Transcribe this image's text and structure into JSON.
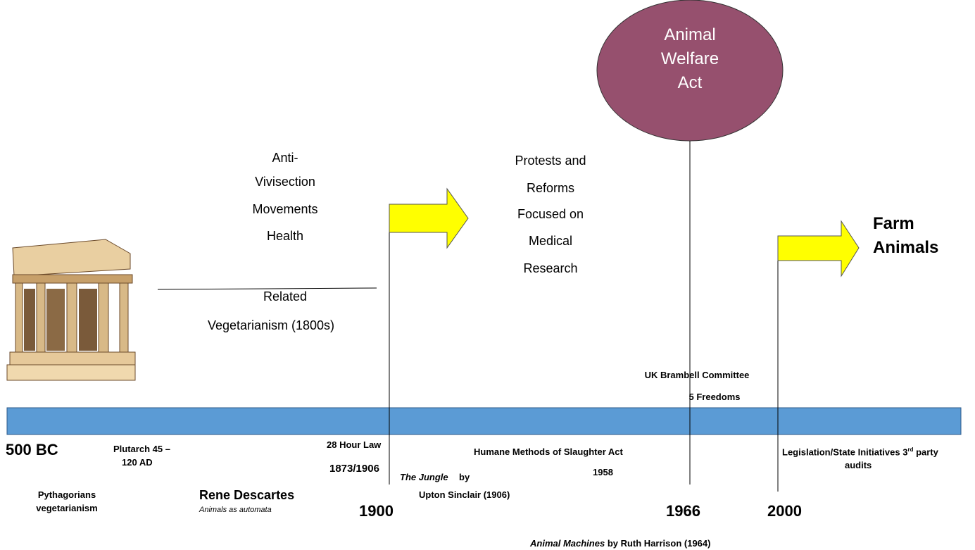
{
  "ellipse": {
    "lines": [
      "Animal",
      "Welfare",
      "Act"
    ]
  },
  "anti_vivisection": {
    "lines": [
      "Anti-",
      "Vivisection",
      "Movements",
      "Health",
      "Related",
      "Vegetarianism (1800s)"
    ]
  },
  "protests": {
    "lines": [
      "Protests and",
      "Reforms",
      "Focused on",
      "Medical",
      "Research"
    ]
  },
  "farm_animals": {
    "lines": [
      "Farm",
      "Animals"
    ]
  },
  "brambell": {
    "title": "UK Brambell Committee",
    "subtitle": "5 Freedoms"
  },
  "events": {
    "start": "500 BC",
    "plutarch": [
      "Plutarch  45 –",
      "120 AD"
    ],
    "hour_law": "28 Hour Law",
    "hour_law_years": "1873/1906",
    "jungle": {
      "title": "The Jungle",
      "by": "by",
      "author": "Upton Sinclair (1906)"
    },
    "humane": [
      "Humane Methods of Slaughter Act",
      "1958"
    ],
    "legislation": {
      "text": "Legislation/State Initiatives  3",
      "sup": "rd",
      "rest": " party",
      "line2": "audits"
    },
    "pythagorians": [
      "Pythagorians",
      "vegetarianism"
    ],
    "descartes": {
      "name": "Rene Descartes",
      "note": "Animals as automata"
    },
    "machines": {
      "title": "Animal Machines",
      "rest": " by Ruth Harrison (1964)"
    }
  },
  "years": [
    "1900",
    "1966",
    "2000"
  ]
}
